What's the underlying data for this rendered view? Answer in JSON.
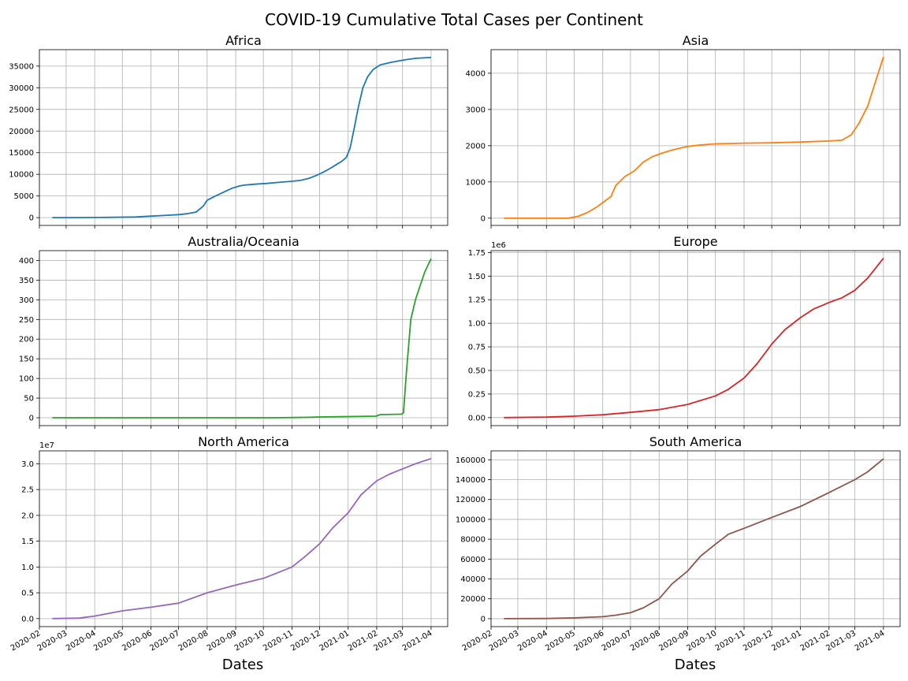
{
  "figure": {
    "title": "COVID-19 Cumulative Total Cases per Continent",
    "xlabel": "Dates",
    "date_ticks": [
      "2020-02",
      "2020-03",
      "2020-04",
      "2020-05",
      "2020-06",
      "2020-07",
      "2020-08",
      "2020-09",
      "2020-10",
      "2020-11",
      "2020-12",
      "2021-01",
      "2021-02",
      "2021-03",
      "2021-04"
    ]
  },
  "chart_data": [
    {
      "type": "line",
      "title": "Africa",
      "color": "#1f77b4",
      "ylim": [
        -1800,
        38800
      ],
      "yticks": [
        0,
        5000,
        10000,
        15000,
        20000,
        25000,
        30000,
        35000
      ],
      "ytick_labels": [
        "0",
        "5000",
        "10000",
        "15000",
        "20000",
        "25000",
        "30000",
        "35000"
      ],
      "offset_label": "",
      "grid": true,
      "x": [
        "2020-02-15",
        "2020-03-15",
        "2020-04-15",
        "2020-05-15",
        "2020-06-01",
        "2020-06-15",
        "2020-07-01",
        "2020-07-10",
        "2020-07-20",
        "2020-07-28",
        "2020-08-01",
        "2020-08-10",
        "2020-08-20",
        "2020-08-28",
        "2020-09-05",
        "2020-09-10",
        "2020-09-20",
        "2020-10-05",
        "2020-10-20",
        "2020-11-01",
        "2020-11-10",
        "2020-11-20",
        "2020-11-28",
        "2020-12-05",
        "2020-12-12",
        "2020-12-18",
        "2020-12-25",
        "2020-12-30",
        "2021-01-03",
        "2021-01-07",
        "2021-01-12",
        "2021-01-17",
        "2021-01-22",
        "2021-01-28",
        "2021-02-05",
        "2021-02-15",
        "2021-02-25",
        "2021-03-05",
        "2021-03-15",
        "2021-04-01"
      ],
      "y": [
        0,
        20,
        60,
        150,
        350,
        500,
        700,
        900,
        1300,
        2700,
        4000,
        5000,
        6000,
        6800,
        7300,
        7500,
        7700,
        7900,
        8200,
        8400,
        8600,
        9100,
        9800,
        10500,
        11300,
        12100,
        13000,
        13900,
        16000,
        20000,
        25500,
        30000,
        32500,
        34200,
        35300,
        35800,
        36200,
        36500,
        36800,
        37000
      ]
    },
    {
      "type": "line",
      "title": "Asia",
      "color": "#ff7f0e",
      "ylim": [
        -200,
        4650
      ],
      "yticks": [
        0,
        1000,
        2000,
        3000,
        4000
      ],
      "ytick_labels": [
        "0",
        "1000",
        "2000",
        "3000",
        "4000"
      ],
      "offset_label": "",
      "grid": true,
      "x": [
        "2020-02-15",
        "2020-04-25",
        "2020-05-05",
        "2020-05-15",
        "2020-05-25",
        "2020-06-01",
        "2020-06-10",
        "2020-06-15",
        "2020-06-25",
        "2020-07-05",
        "2020-07-15",
        "2020-07-25",
        "2020-08-05",
        "2020-08-15",
        "2020-09-01",
        "2020-09-15",
        "2020-10-01",
        "2020-11-01",
        "2020-12-01",
        "2021-01-01",
        "2021-02-01",
        "2021-02-15",
        "2021-02-25",
        "2021-03-05",
        "2021-03-15",
        "2021-03-25",
        "2021-04-01"
      ],
      "y": [
        0,
        0,
        50,
        150,
        300,
        430,
        600,
        900,
        1150,
        1300,
        1550,
        1700,
        1800,
        1880,
        1980,
        2020,
        2050,
        2070,
        2080,
        2100,
        2130,
        2150,
        2300,
        2600,
        3100,
        3900,
        4450
      ]
    },
    {
      "type": "line",
      "title": "Australia/Oceania",
      "color": "#2ca02c",
      "ylim": [
        -20,
        425
      ],
      "yticks": [
        0,
        50,
        100,
        150,
        200,
        250,
        300,
        350,
        400
      ],
      "ytick_labels": [
        "0",
        "50",
        "100",
        "150",
        "200",
        "250",
        "300",
        "350",
        "400"
      ],
      "offset_label": "",
      "grid": true,
      "x": [
        "2020-02-15",
        "2020-10-15",
        "2020-11-15",
        "2020-12-01",
        "2020-12-31",
        "2021-01-31",
        "2021-02-05",
        "2021-02-28",
        "2021-03-02",
        "2021-03-05",
        "2021-03-10",
        "2021-03-15",
        "2021-03-20",
        "2021-03-25",
        "2021-04-01"
      ],
      "y": [
        0,
        0,
        1,
        2,
        3,
        4,
        8,
        9,
        12,
        110,
        250,
        300,
        335,
        370,
        405
      ]
    },
    {
      "type": "line",
      "title": "Europe",
      "color": "#d62728",
      "ylim": [
        -85000,
        1770000
      ],
      "yticks": [
        0,
        250000,
        500000,
        750000,
        1000000,
        1250000,
        1500000,
        1750000
      ],
      "ytick_labels": [
        "0.00",
        "0.25",
        "0.50",
        "0.75",
        "1.00",
        "1.25",
        "1.50",
        "1.75"
      ],
      "offset_label": "1e6",
      "grid": true,
      "x": [
        "2020-02-15",
        "2020-04-01",
        "2020-05-01",
        "2020-06-01",
        "2020-07-01",
        "2020-08-01",
        "2020-09-01",
        "2020-10-01",
        "2020-10-15",
        "2020-11-01",
        "2020-11-15",
        "2020-12-01",
        "2020-12-15",
        "2021-01-01",
        "2021-01-15",
        "2021-02-01",
        "2021-02-15",
        "2021-03-01",
        "2021-03-15",
        "2021-04-01"
      ],
      "y": [
        0,
        5000,
        15000,
        30000,
        55000,
        85000,
        140000,
        230000,
        300000,
        420000,
        570000,
        780000,
        930000,
        1060000,
        1150000,
        1220000,
        1270000,
        1350000,
        1480000,
        1690000
      ]
    },
    {
      "type": "line",
      "title": "North America",
      "color": "#9467bd",
      "ylim": [
        -1550000,
        32500000
      ],
      "yticks": [
        0,
        5000000,
        10000000,
        15000000,
        20000000,
        25000000,
        30000000
      ],
      "ytick_labels": [
        "0.0",
        "0.5",
        "1.0",
        "1.5",
        "2.0",
        "2.5",
        "3.0"
      ],
      "offset_label": "1e7",
      "grid": true,
      "x": [
        "2020-02-15",
        "2020-03-15",
        "2020-04-01",
        "2020-05-01",
        "2020-06-01",
        "2020-07-01",
        "2020-08-01",
        "2020-09-01",
        "2020-10-01",
        "2020-11-01",
        "2020-11-15",
        "2020-12-01",
        "2020-12-15",
        "2021-01-01",
        "2021-01-15",
        "2021-02-01",
        "2021-02-15",
        "2021-03-01",
        "2021-03-15",
        "2021-04-01"
      ],
      "y": [
        0,
        100000,
        500000,
        1500000,
        2200000,
        3000000,
        5000000,
        6500000,
        7800000,
        10000000,
        12000000,
        14500000,
        17500000,
        20500000,
        24000000,
        26700000,
        28000000,
        29000000,
        30000000,
        31000000
      ]
    },
    {
      "type": "line",
      "title": "South America",
      "color": "#8c564b",
      "ylim": [
        -8000,
        169000
      ],
      "yticks": [
        0,
        20000,
        40000,
        60000,
        80000,
        100000,
        120000,
        140000,
        160000
      ],
      "ytick_labels": [
        "0",
        "20000",
        "40000",
        "60000",
        "80000",
        "100000",
        "120000",
        "140000",
        "160000"
      ],
      "offset_label": "",
      "grid": true,
      "x": [
        "2020-02-15",
        "2020-04-01",
        "2020-05-01",
        "2020-06-01",
        "2020-06-15",
        "2020-07-01",
        "2020-07-15",
        "2020-08-01",
        "2020-08-15",
        "2020-09-01",
        "2020-09-15",
        "2020-10-01",
        "2020-10-15",
        "2020-11-01",
        "2020-12-01",
        "2021-01-01",
        "2021-02-01",
        "2021-03-01",
        "2021-03-15",
        "2021-04-01"
      ],
      "y": [
        0,
        200,
        800,
        2000,
        3500,
        6000,
        11000,
        20000,
        35000,
        48000,
        63000,
        75000,
        85000,
        91000,
        102000,
        113000,
        127000,
        140000,
        148000,
        161000
      ]
    }
  ]
}
